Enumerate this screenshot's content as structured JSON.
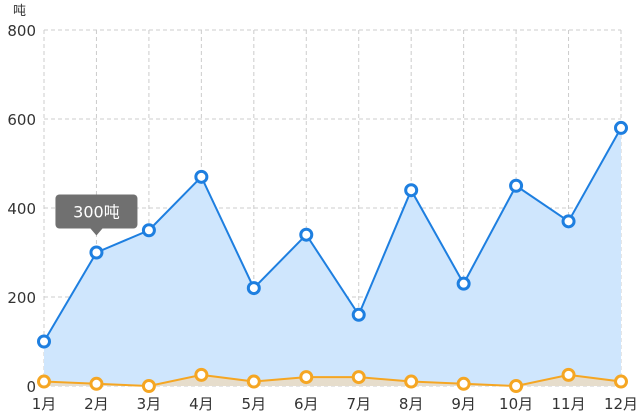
{
  "chart_data": {
    "type": "area",
    "unit_label": "吨",
    "categories": [
      "1月",
      "2月",
      "3月",
      "4月",
      "5月",
      "6月",
      "7月",
      "8月",
      "9月",
      "10月",
      "11月",
      "12月"
    ],
    "ylim": [
      0,
      800
    ],
    "yticks": [
      0,
      200,
      400,
      600,
      800
    ],
    "grid": true,
    "series": [
      {
        "values": [
          100,
          300,
          350,
          470,
          220,
          340,
          160,
          440,
          230,
          450,
          370,
          580
        ],
        "color": "#1E7FE0",
        "fill": "#CFE6FD"
      },
      {
        "values": [
          10,
          5,
          0,
          25,
          10,
          20,
          20,
          10,
          5,
          0,
          25,
          10
        ],
        "color": "#F5A623",
        "fill": "#E6DDCC"
      }
    ],
    "tooltip": {
      "category_index": 1,
      "text": "300吨"
    }
  }
}
